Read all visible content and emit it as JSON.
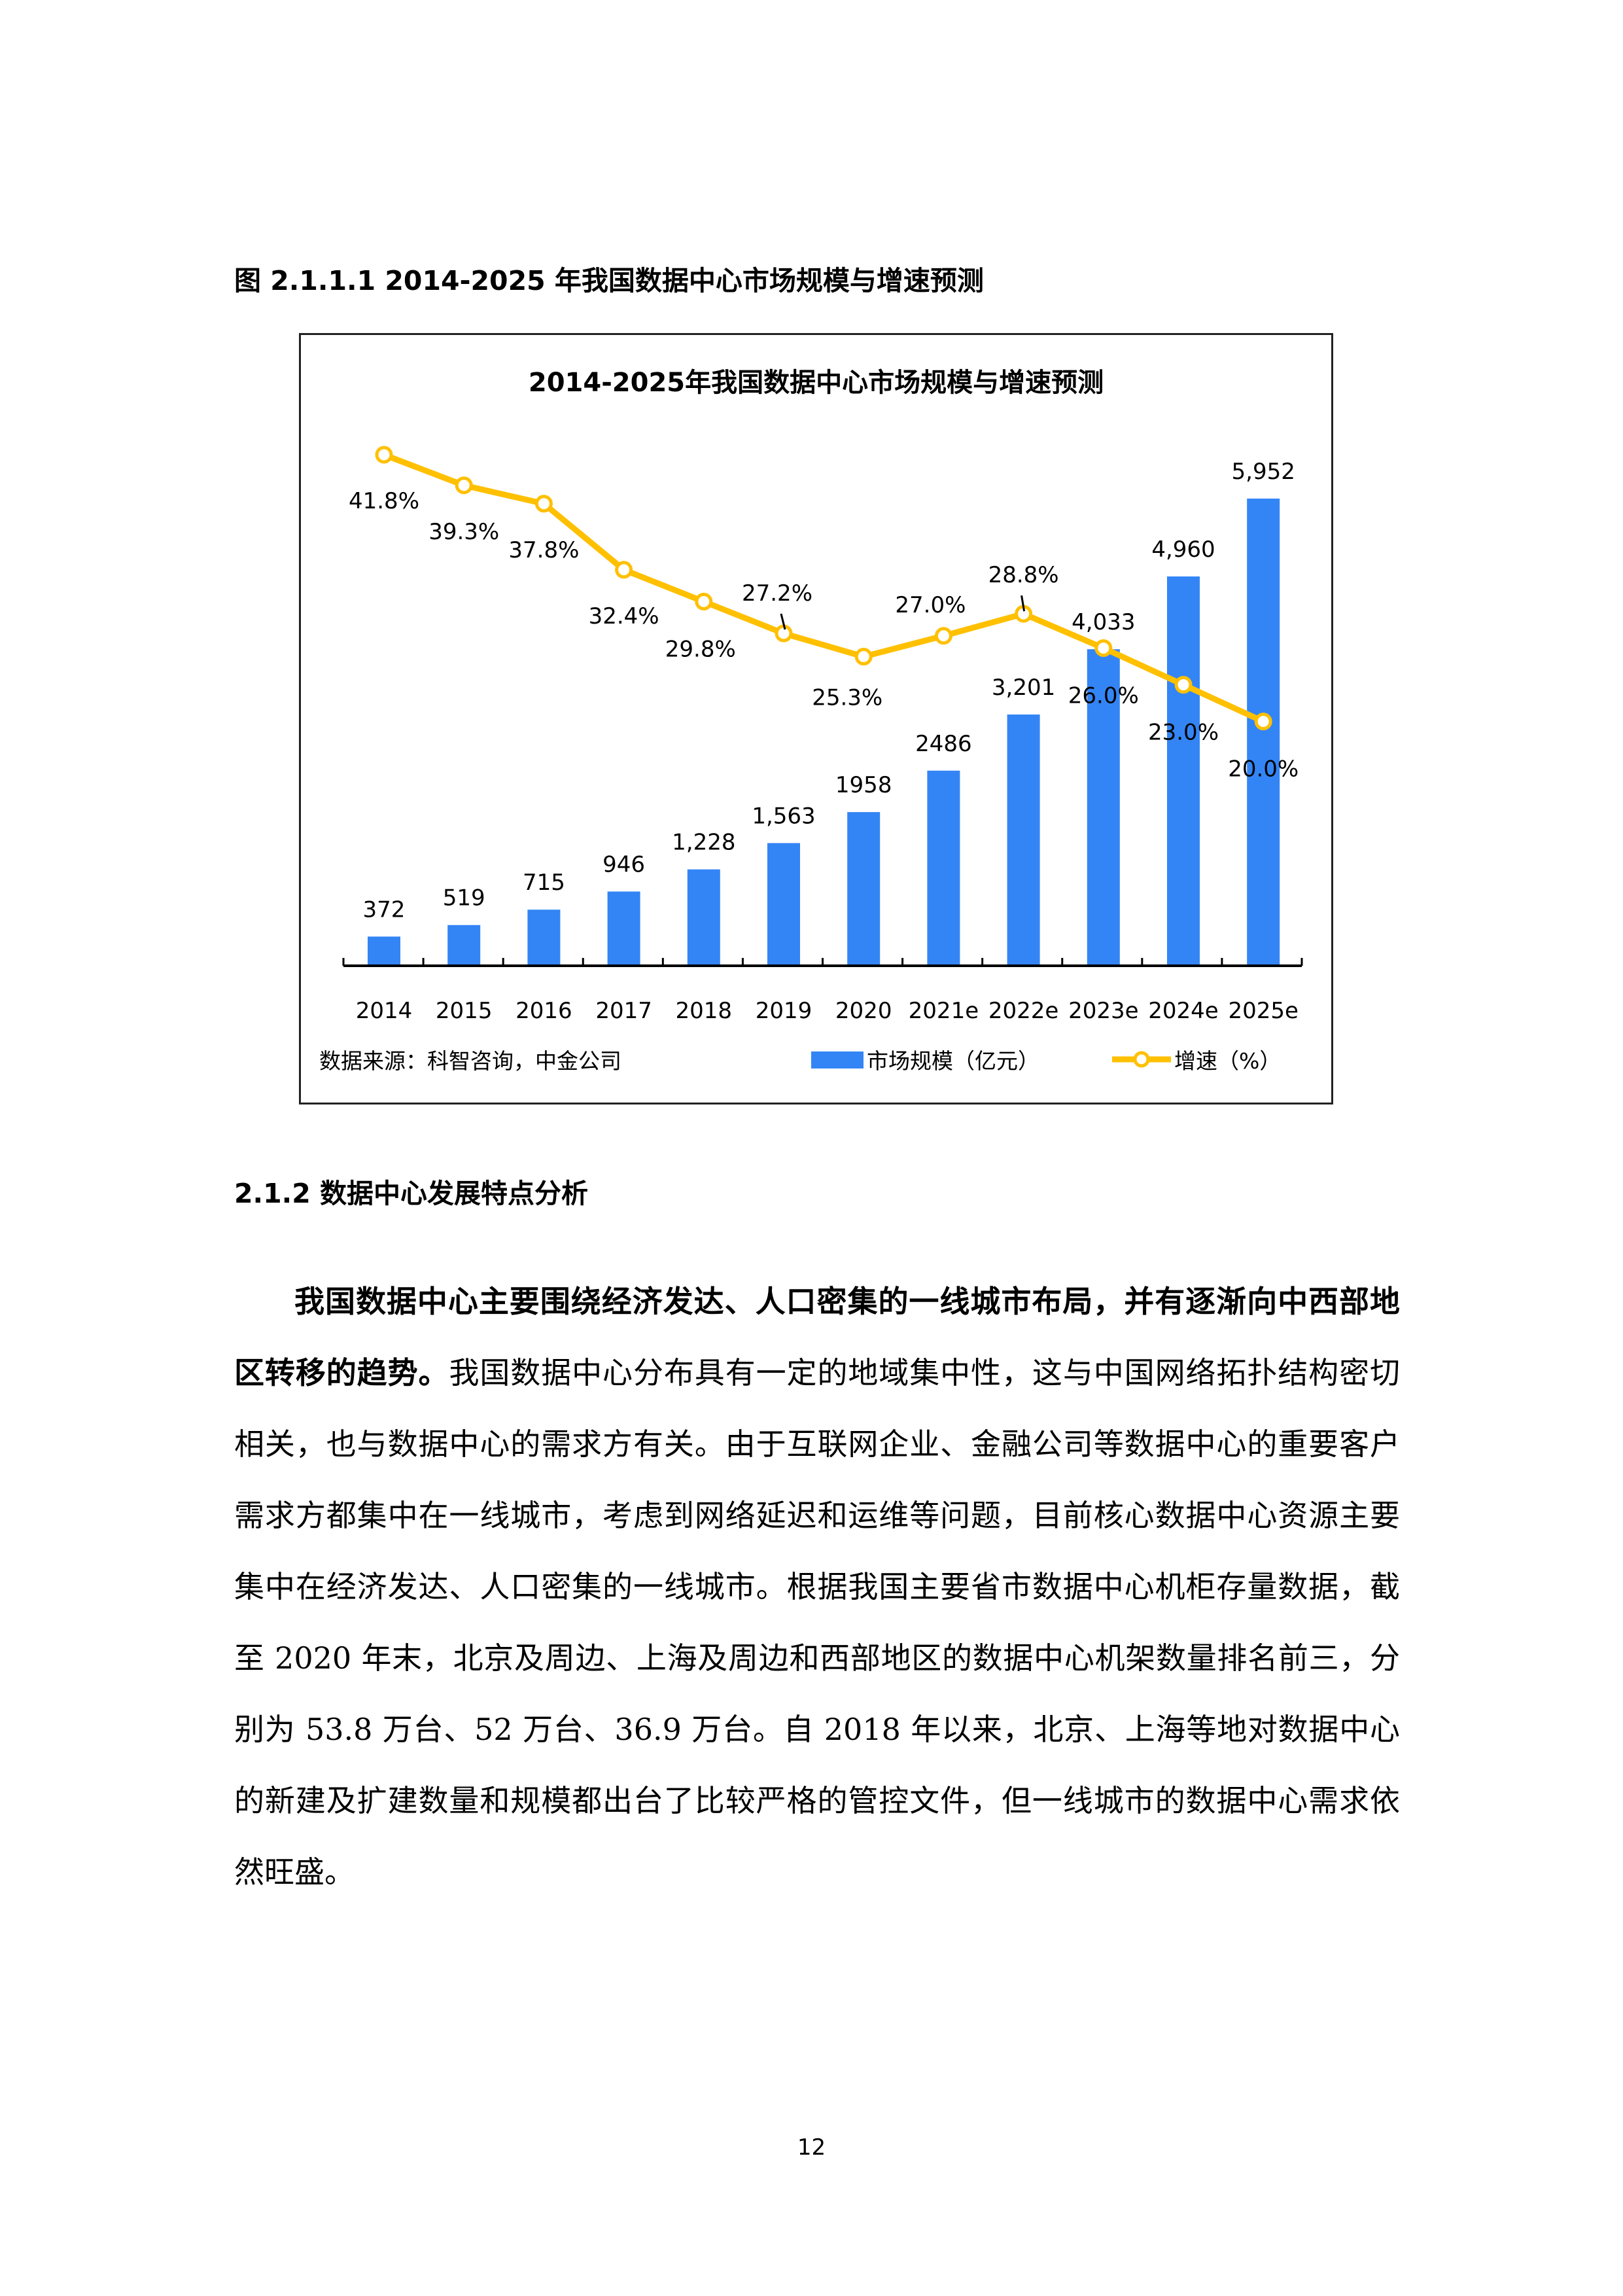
{
  "figure_caption": "图 2.1.1.1 2014-2025 年我国数据中心市场规模与增速预测",
  "chart_data": {
    "type": "bar+line",
    "title": "2014-2025年我国数据中心市场规模与增速预测",
    "categories": [
      "2014",
      "2015",
      "2016",
      "2017",
      "2018",
      "2019",
      "2020",
      "2021e",
      "2022e",
      "2023e",
      "2024e",
      "2025e"
    ],
    "series": [
      {
        "name": "市场规模（亿元）",
        "type": "bar",
        "color": "#3385F5",
        "values": [
          372,
          519,
          715,
          946,
          1228,
          1563,
          1958,
          2486,
          3201,
          4033,
          4960,
          5952
        ],
        "labels": [
          "372",
          "519",
          "715",
          "946",
          "1,228",
          "1,563",
          "1958",
          "2486",
          "3,201",
          "4,033",
          "4,960",
          "5,952"
        ]
      },
      {
        "name": "增速（%）",
        "type": "line",
        "color": "#FFC000",
        "values": [
          41.8,
          39.3,
          37.8,
          32.4,
          29.8,
          27.2,
          25.3,
          27.0,
          28.8,
          26.0,
          23.0,
          20.0
        ],
        "labels": [
          "41.8%",
          "39.3%",
          "37.8%",
          "32.4%",
          "29.8%",
          "27.2%",
          "25.3%",
          "27.0%",
          "28.8%",
          "26.0%",
          "23.0%",
          "20.0%"
        ]
      }
    ],
    "xlabel": "",
    "ylabel": "",
    "grid": false,
    "legend_position": "bottom-right",
    "source_note": "数据来源：科智咨询，中金公司"
  },
  "legend": {
    "bar_label": "市场规模（亿元）",
    "line_label": "增速（%）"
  },
  "source_note": "数据来源：科智咨询，中金公司",
  "section": {
    "heading": "2.1.2 数据中心发展特点分析",
    "para_bold": "我国数据中心主要围绕经济发达、人口密集的一线城市布局，并有逐渐向中西部地区转移的趋势。",
    "para_rest": "我国数据中心分布具有一定的地域集中性，这与中国网络拓扑结构密切相关，也与数据中心的需求方有关。由于互联网企业、金融公司等数据中心的重要客户需求方都集中在一线城市，考虑到网络延迟和运维等问题，目前核心数据中心资源主要集中在经济发达、人口密集的一线城市。根据我国主要省市数据中心机柜存量数据，截至 2020 年末，北京及周边、上海及周边和西部地区的数据中心机架数量排名前三，分别为 53.8 万台、52 万台、36.9 万台。自 2018 年以来，北京、上海等地对数据中心的新建及扩建数量和规模都出台了比较严格的管控文件，但一线城市的数据中心需求依然旺盛。"
  },
  "page_number": "12"
}
